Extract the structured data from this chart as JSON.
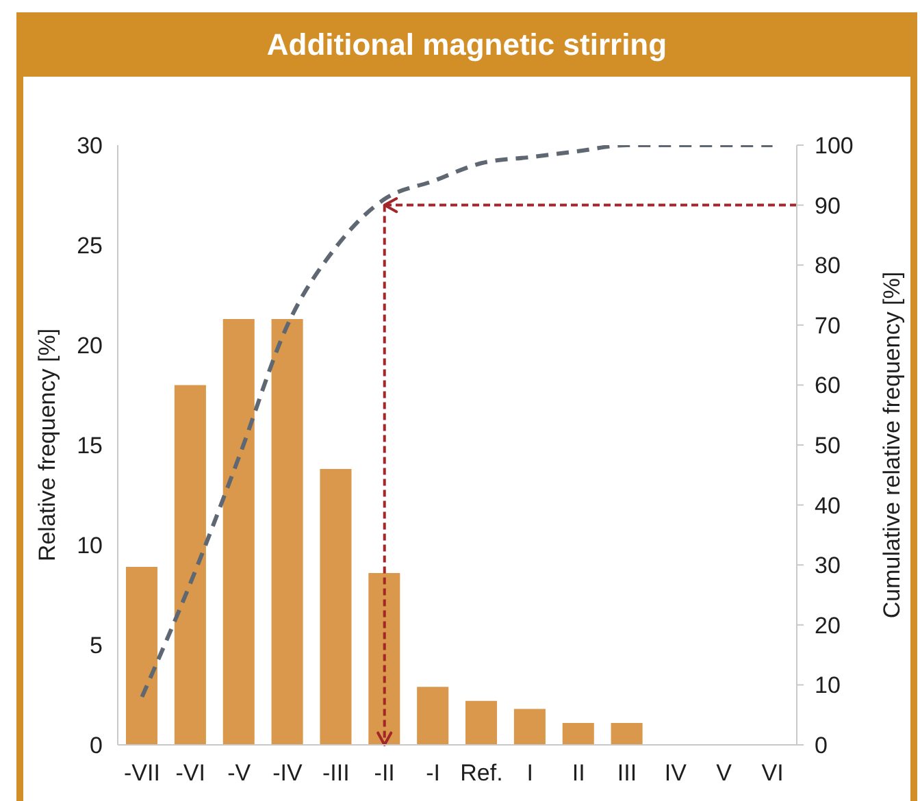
{
  "chart_data": {
    "type": "bar",
    "title": "Additional magnetic stirring",
    "ylabel": "Relative frequency [%]",
    "y2label": "Cumulative relative frequency [%]",
    "categories": [
      "-VII",
      "-VI",
      "-V",
      "-IV",
      "-III",
      "-II",
      "-I",
      "Ref.",
      "I",
      "II",
      "III",
      "IV",
      "V",
      "VI"
    ],
    "series": [
      {
        "color": "#d9984b",
        "values": [
          8.9,
          18,
          21.3,
          21.3,
          13.8,
          8.6,
          2.9,
          2.2,
          1.8,
          1.1,
          1.1,
          0,
          0,
          0
        ]
      },
      {
        "type": "line",
        "axis": "y2",
        "color": "#5f6872",
        "line_style": "dashed",
        "values": [
          8,
          27,
          48,
          70,
          83,
          91,
          94,
          97,
          98,
          99,
          100,
          100,
          100,
          100
        ]
      }
    ],
    "ylim": [
      0,
      30
    ],
    "yticks": [
      0,
      5,
      10,
      15,
      20,
      25,
      30
    ],
    "y2lim": [
      0,
      100
    ],
    "y2ticks": [
      0,
      10,
      20,
      30,
      40,
      50,
      60,
      70,
      80,
      90,
      100
    ],
    "ref_lines": [
      {
        "axis": "y2",
        "value": 90,
        "color": "#a3262a",
        "line_style": "dashed"
      },
      {
        "axis": "x",
        "value": "-II",
        "color": "#a3262a",
        "line_style": "dashed"
      }
    ]
  }
}
